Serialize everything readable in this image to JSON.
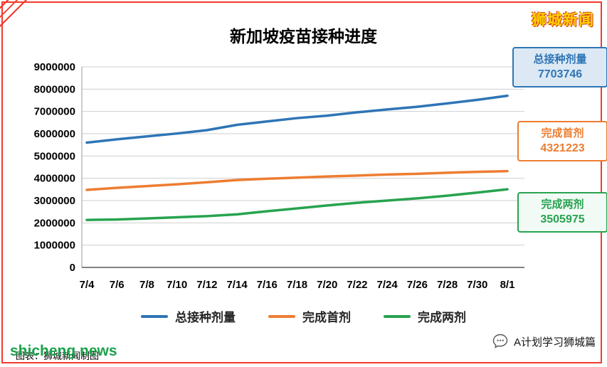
{
  "page": {
    "brand": "狮城新闻",
    "footer_right": "A计划学习狮城篇",
    "footer_left_caption": "图表：狮城新闻制图",
    "watermark": "shicheng news"
  },
  "chart_data": {
    "type": "line",
    "title": "新加坡疫苗接种进度",
    "categories": [
      "7/4",
      "7/6",
      "7/8",
      "7/10",
      "7/12",
      "7/14",
      "7/16",
      "7/18",
      "7/20",
      "7/22",
      "7/24",
      "7/26",
      "7/28",
      "7/30",
      "8/1"
    ],
    "series": [
      {
        "name": "总接种剂量",
        "color": "#2e75b6",
        "values": [
          5600000,
          5750000,
          5880000,
          6010000,
          6160000,
          6400000,
          6550000,
          6700000,
          6810000,
          6960000,
          7090000,
          7210000,
          7360000,
          7520000,
          7703746
        ]
      },
      {
        "name": "完成首剂",
        "color": "#ed7d31",
        "values": [
          3480000,
          3570000,
          3650000,
          3730000,
          3820000,
          3920000,
          3980000,
          4030000,
          4080000,
          4120000,
          4170000,
          4200000,
          4250000,
          4290000,
          4321223
        ]
      },
      {
        "name": "完成两剂",
        "color": "#27a34f",
        "values": [
          2130000,
          2150000,
          2200000,
          2250000,
          2300000,
          2380000,
          2520000,
          2650000,
          2780000,
          2900000,
          3000000,
          3100000,
          3220000,
          3360000,
          3505975
        ]
      }
    ],
    "ylim": [
      0,
      9000000
    ],
    "ytick_step": 1000000,
    "grid": true,
    "legend_position": "bottom",
    "xlabel": "",
    "ylabel": ""
  },
  "callouts": [
    {
      "label": "总接种剂量",
      "value": "7703746",
      "color": "#2e75b6",
      "bg": "#dce9f5"
    },
    {
      "label": "完成首剂",
      "value": "4321223",
      "color": "#ed7d31",
      "bg": "#ffffff"
    },
    {
      "label": "完成两剂",
      "value": "3505975",
      "color": "#27a34f",
      "bg": "#f2faf5"
    }
  ]
}
